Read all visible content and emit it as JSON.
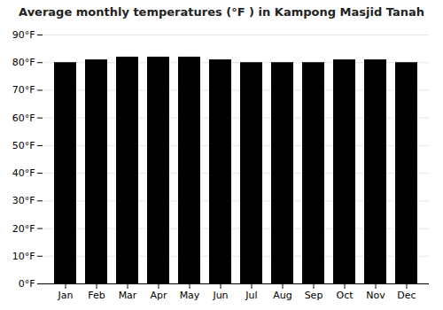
{
  "chart_data": {
    "type": "bar",
    "title": "Average monthly temperatures (°F ) in Kampong Masjid Tanah",
    "categories": [
      "Jan",
      "Feb",
      "Mar",
      "Apr",
      "May",
      "Jun",
      "Jul",
      "Aug",
      "Sep",
      "Oct",
      "Nov",
      "Dec"
    ],
    "values": [
      80,
      81,
      82,
      82,
      82,
      81,
      80,
      80,
      80,
      81,
      81,
      80
    ],
    "ylim": [
      0,
      90
    ],
    "yticks": [
      {
        "value": 0,
        "label": "0°F"
      },
      {
        "value": 10,
        "label": "10°F"
      },
      {
        "value": 20,
        "label": "20°F"
      },
      {
        "value": 30,
        "label": "30°F"
      },
      {
        "value": 40,
        "label": "40°F"
      },
      {
        "value": 50,
        "label": "50°F"
      },
      {
        "value": 60,
        "label": "60°F"
      },
      {
        "value": 70,
        "label": "70°F"
      },
      {
        "value": 80,
        "label": "80°F"
      },
      {
        "value": 90,
        "label": "90°F"
      }
    ],
    "grid": true
  }
}
